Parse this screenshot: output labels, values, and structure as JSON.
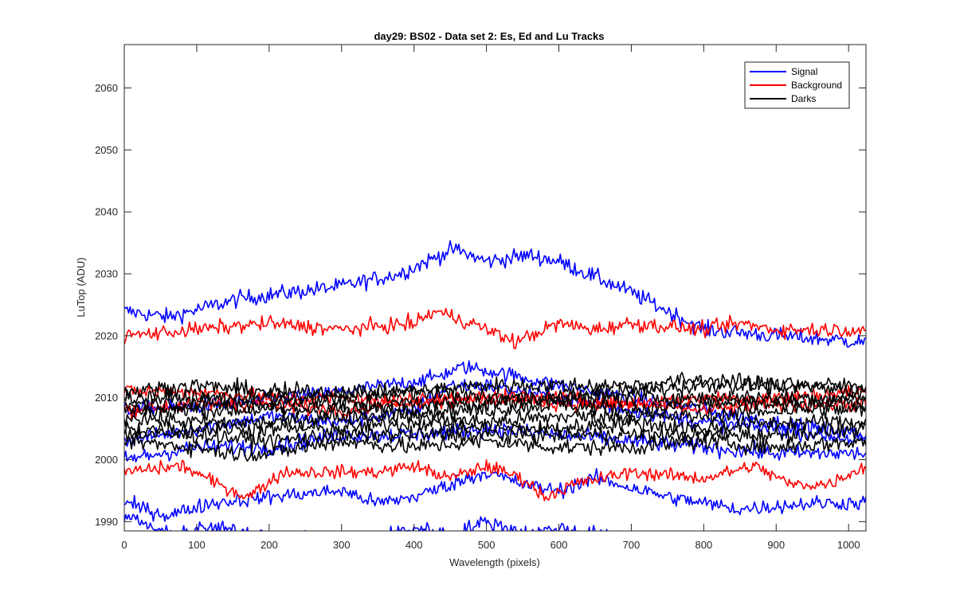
{
  "chart_data": {
    "type": "line",
    "title": "day29: BS02 - Data set 2: Es, Ed and Lu Tracks",
    "xlabel": "Wavelength (pixels)",
    "ylabel": "LuTop (ADU)",
    "xlim": [
      0,
      1024
    ],
    "ylim": [
      1988.5,
      2067
    ],
    "xticks": [
      0,
      100,
      200,
      300,
      400,
      500,
      600,
      700,
      800,
      900,
      1000
    ],
    "yticks": [
      1990,
      2000,
      2010,
      2020,
      2030,
      2040,
      2050,
      2060
    ],
    "grid": false,
    "legend_position": "top-right",
    "series": [
      {
        "name": "Signal",
        "color": "#0000ff"
      },
      {
        "name": "Background",
        "color": "#ff0000"
      },
      {
        "name": "Darks",
        "color": "#000000"
      }
    ],
    "tracks": [
      {
        "group": "Signal",
        "noise": 1.1,
        "points": [
          [
            0,
            2024
          ],
          [
            60,
            2023
          ],
          [
            160,
            2026
          ],
          [
            300,
            2028
          ],
          [
            380,
            2030
          ],
          [
            455,
            2034
          ],
          [
            500,
            2032
          ],
          [
            560,
            2033
          ],
          [
            600,
            2032
          ],
          [
            700,
            2027
          ],
          [
            800,
            2021
          ],
          [
            900,
            2020
          ],
          [
            1024,
            2019
          ]
        ]
      },
      {
        "group": "Signal",
        "noise": 1.0,
        "points": [
          [
            0,
            2008
          ],
          [
            150,
            2009
          ],
          [
            300,
            2011
          ],
          [
            420,
            2013
          ],
          [
            470,
            2015
          ],
          [
            520,
            2014
          ],
          [
            600,
            2012
          ],
          [
            700,
            2010
          ],
          [
            800,
            2008
          ],
          [
            900,
            2006
          ],
          [
            1024,
            2004
          ]
        ]
      },
      {
        "group": "Signal",
        "noise": 1.0,
        "points": [
          [
            0,
            2003
          ],
          [
            100,
            2005
          ],
          [
            200,
            2007
          ],
          [
            300,
            2006
          ],
          [
            400,
            2008
          ],
          [
            450,
            2012
          ],
          [
            500,
            2012
          ],
          [
            600,
            2010
          ],
          [
            700,
            2008
          ],
          [
            800,
            2006
          ],
          [
            900,
            2005
          ],
          [
            1024,
            2003
          ]
        ]
      },
      {
        "group": "Signal",
        "noise": 1.1,
        "points": [
          [
            0,
            2000
          ],
          [
            100,
            2002
          ],
          [
            200,
            2002
          ],
          [
            300,
            2004
          ],
          [
            400,
            2004
          ],
          [
            500,
            2005
          ],
          [
            600,
            2004
          ],
          [
            700,
            2003
          ],
          [
            800,
            2002
          ],
          [
            900,
            2001
          ],
          [
            1024,
            2001
          ]
        ]
      },
      {
        "group": "Signal",
        "noise": 1.0,
        "points": [
          [
            0,
            1993
          ],
          [
            60,
            1991
          ],
          [
            120,
            1993
          ],
          [
            200,
            1994
          ],
          [
            300,
            1995
          ],
          [
            350,
            1993
          ],
          [
            400,
            1994
          ],
          [
            450,
            1996
          ],
          [
            500,
            1998
          ],
          [
            550,
            1996
          ],
          [
            600,
            1995
          ],
          [
            650,
            1997
          ],
          [
            750,
            1994
          ],
          [
            850,
            1992
          ],
          [
            950,
            1993
          ],
          [
            1024,
            1993
          ]
        ]
      },
      {
        "group": "Signal",
        "noise": 1.0,
        "points": [
          [
            0,
            1991
          ],
          [
            60,
            1988
          ],
          [
            120,
            1989
          ],
          [
            200,
            1988
          ],
          [
            300,
            1986
          ],
          [
            400,
            1989
          ],
          [
            450,
            1988
          ],
          [
            500,
            1990
          ],
          [
            560,
            1988
          ],
          [
            600,
            1989
          ],
          [
            700,
            1987
          ],
          [
            800,
            1987
          ],
          [
            900,
            1986
          ],
          [
            1024,
            1986
          ]
        ]
      },
      {
        "group": "Background",
        "noise": 1.0,
        "points": [
          [
            0,
            2020
          ],
          [
            100,
            2021
          ],
          [
            200,
            2022
          ],
          [
            300,
            2021
          ],
          [
            400,
            2022
          ],
          [
            430,
            2024
          ],
          [
            480,
            2022
          ],
          [
            540,
            2019
          ],
          [
            600,
            2022
          ],
          [
            650,
            2021
          ],
          [
            700,
            2022
          ],
          [
            800,
            2021
          ],
          [
            850,
            2022
          ],
          [
            900,
            2021
          ],
          [
            1024,
            2021
          ]
        ]
      },
      {
        "group": "Background",
        "noise": 1.0,
        "points": [
          [
            0,
            2011
          ],
          [
            100,
            2011
          ],
          [
            200,
            2010
          ],
          [
            300,
            2010
          ],
          [
            400,
            2009
          ],
          [
            500,
            2010
          ],
          [
            600,
            2010
          ],
          [
            700,
            2009
          ],
          [
            800,
            2010
          ],
          [
            900,
            2010
          ],
          [
            1024,
            2011
          ]
        ]
      },
      {
        "group": "Background",
        "noise": 1.0,
        "points": [
          [
            0,
            2008
          ],
          [
            100,
            2009
          ],
          [
            200,
            2009
          ],
          [
            300,
            2008
          ],
          [
            400,
            2010
          ],
          [
            500,
            2010
          ],
          [
            600,
            2009
          ],
          [
            700,
            2009
          ],
          [
            800,
            2008
          ],
          [
            900,
            2009
          ],
          [
            1024,
            2009
          ]
        ]
      },
      {
        "group": "Background",
        "noise": 0.9,
        "points": [
          [
            0,
            1998
          ],
          [
            80,
            1999
          ],
          [
            130,
            1996
          ],
          [
            170,
            1994
          ],
          [
            220,
            1998
          ],
          [
            300,
            1998
          ],
          [
            350,
            1998
          ],
          [
            400,
            1999
          ],
          [
            450,
            1997
          ],
          [
            500,
            1999
          ],
          [
            550,
            1997
          ],
          [
            580,
            1994
          ],
          [
            620,
            1996
          ],
          [
            700,
            1998
          ],
          [
            800,
            1997
          ],
          [
            870,
            1999
          ],
          [
            920,
            1996
          ],
          [
            970,
            1996
          ],
          [
            1024,
            1999
          ]
        ]
      },
      {
        "group": "Darks",
        "noise": 1.1,
        "points": [
          [
            0,
            2011
          ],
          [
            100,
            2012
          ],
          [
            200,
            2011
          ],
          [
            300,
            2011
          ],
          [
            400,
            2011
          ],
          [
            500,
            2012
          ],
          [
            600,
            2012
          ],
          [
            700,
            2012
          ],
          [
            800,
            2013
          ],
          [
            900,
            2012
          ],
          [
            1024,
            2012
          ]
        ]
      },
      {
        "group": "Darks",
        "noise": 1.1,
        "points": [
          [
            0,
            2010
          ],
          [
            100,
            2010
          ],
          [
            200,
            2010
          ],
          [
            300,
            2010
          ],
          [
            400,
            2011
          ],
          [
            500,
            2010
          ],
          [
            600,
            2010
          ],
          [
            700,
            2011
          ],
          [
            800,
            2012
          ],
          [
            900,
            2012
          ],
          [
            1024,
            2011
          ]
        ]
      },
      {
        "group": "Darks",
        "noise": 1.1,
        "points": [
          [
            0,
            2009
          ],
          [
            100,
            2009
          ],
          [
            200,
            2009
          ],
          [
            300,
            2009
          ],
          [
            400,
            2009
          ],
          [
            500,
            2009
          ],
          [
            600,
            2010
          ],
          [
            700,
            2010
          ],
          [
            800,
            2010
          ],
          [
            900,
            2010
          ],
          [
            1024,
            2010
          ]
        ]
      },
      {
        "group": "Darks",
        "noise": 1.1,
        "points": [
          [
            0,
            2008
          ],
          [
            100,
            2008
          ],
          [
            200,
            2008
          ],
          [
            300,
            2008
          ],
          [
            400,
            2008
          ],
          [
            500,
            2008
          ],
          [
            600,
            2009
          ],
          [
            700,
            2008
          ],
          [
            800,
            2009
          ],
          [
            900,
            2009
          ],
          [
            1024,
            2009
          ]
        ]
      },
      {
        "group": "Darks",
        "noise": 1.1,
        "points": [
          [
            0,
            2007
          ],
          [
            100,
            2006
          ],
          [
            200,
            2006
          ],
          [
            300,
            2007
          ],
          [
            400,
            2007
          ],
          [
            500,
            2006
          ],
          [
            600,
            2007
          ],
          [
            700,
            2007
          ],
          [
            800,
            2007
          ],
          [
            900,
            2008
          ],
          [
            1024,
            2008
          ]
        ]
      },
      {
        "group": "Darks",
        "noise": 1.1,
        "points": [
          [
            0,
            2005
          ],
          [
            100,
            2005
          ],
          [
            200,
            2005
          ],
          [
            300,
            2005
          ],
          [
            400,
            2006
          ],
          [
            500,
            2005
          ],
          [
            600,
            2005
          ],
          [
            700,
            2006
          ],
          [
            800,
            2005
          ],
          [
            900,
            2006
          ],
          [
            1024,
            2006
          ]
        ]
      },
      {
        "group": "Darks",
        "noise": 1.1,
        "points": [
          [
            0,
            2004
          ],
          [
            100,
            2004
          ],
          [
            200,
            2003
          ],
          [
            300,
            2004
          ],
          [
            400,
            2004
          ],
          [
            500,
            2004
          ],
          [
            600,
            2004
          ],
          [
            700,
            2004
          ],
          [
            800,
            2004
          ],
          [
            900,
            2004
          ],
          [
            1024,
            2005
          ]
        ]
      },
      {
        "group": "Darks",
        "noise": 1.1,
        "points": [
          [
            0,
            2003
          ],
          [
            100,
            2002
          ],
          [
            150,
            2001
          ],
          [
            200,
            2001
          ],
          [
            300,
            2003
          ],
          [
            400,
            2002
          ],
          [
            500,
            2003
          ],
          [
            600,
            2002
          ],
          [
            700,
            2002
          ],
          [
            800,
            2003
          ],
          [
            900,
            2002
          ],
          [
            1024,
            2003
          ]
        ]
      }
    ]
  }
}
